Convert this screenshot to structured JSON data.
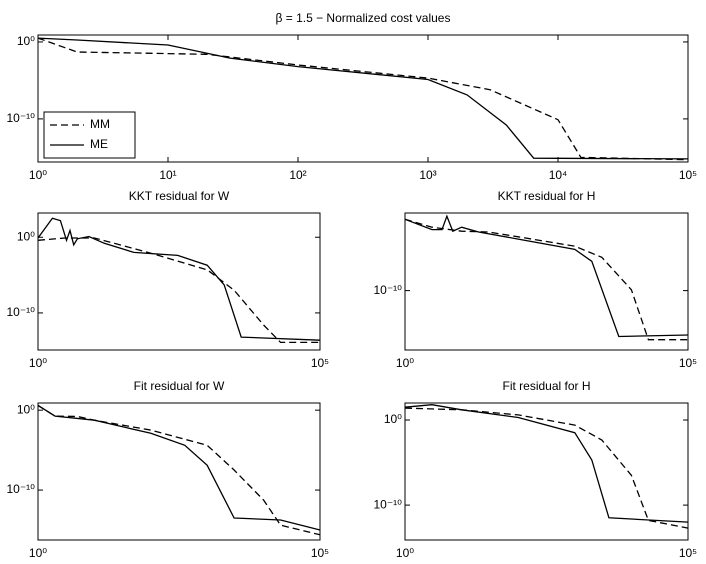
{
  "chart_data": [
    {
      "type": "line",
      "title": "β = 1.5 − Normalized cost values",
      "xscale": "log",
      "yscale": "log",
      "legend": "lower left",
      "xlim": [
        1,
        100000
      ],
      "ylim": [
        2.5e-16,
        8
      ],
      "xticks": [
        {
          "value": 1,
          "label": "10⁰"
        },
        {
          "value": 10,
          "label": "10¹"
        },
        {
          "value": 100,
          "label": "10²"
        },
        {
          "value": 1000,
          "label": "10³"
        },
        {
          "value": 10000,
          "label": "10⁴"
        },
        {
          "value": 100000,
          "label": "10⁵"
        }
      ],
      "yticks": [
        {
          "value": 1,
          "label": "10⁰"
        },
        {
          "value": 1e-10,
          "label": "10⁻¹⁰"
        }
      ],
      "series": [
        {
          "name": "MM",
          "color": "#000000",
          "style": "dashed",
          "x": [
            1,
            2,
            20,
            100,
            1000,
            3000,
            10000,
            15000,
            100000
          ],
          "values": [
            3.2,
            0.05,
            0.025,
            0.001,
            2e-05,
            6.3e-07,
            7.9e-11,
            1e-15,
            5e-16
          ]
        },
        {
          "name": "ME",
          "color": "#000000",
          "style": "solid",
          "x": [
            1,
            2,
            10,
            30,
            100,
            1000,
            2000,
            4000,
            6500,
            100000
          ],
          "values": [
            3.2,
            1.8,
            0.4,
            0.0079,
            0.00063,
            1.3e-05,
            1.3e-07,
            1.6e-11,
            7.9e-16,
            6.3e-16
          ]
        }
      ]
    },
    {
      "type": "line",
      "title": "KKT residual for W",
      "xscale": "log",
      "yscale": "log",
      "xlim": [
        1,
        100000
      ],
      "ylim": [
        1.26e-15,
        1600
      ],
      "xticks": [
        {
          "value": 1,
          "label": "10⁰"
        },
        {
          "value": 100000,
          "label": "10⁵"
        }
      ],
      "yticks": [
        {
          "value": 1,
          "label": "10⁰"
        },
        {
          "value": 1e-10,
          "label": "10⁻¹⁰"
        }
      ],
      "series": [
        {
          "name": "MM",
          "color": "#000000",
          "style": "dashed",
          "x": [
            1,
            3,
            10,
            30,
            100,
            1000,
            3000,
            10000,
            20000,
            100000
          ],
          "values": [
            0.4,
            0.8,
            0.8,
            0.09,
            0.0079,
            5e-05,
            1e-07,
            2.5e-12,
            1.26e-14,
            1.26e-14
          ]
        },
        {
          "name": "ME",
          "color": "#000000",
          "style": "solid",
          "x": [
            1,
            1.8,
            2.5,
            3.2,
            3.7,
            4.3,
            5,
            8,
            15,
            50,
            300,
            1000,
            2000,
            4000,
            100000
          ],
          "values": [
            0.8,
            316,
            158,
            0.4,
            7.9,
            0.1,
            0.63,
            1.26,
            0.16,
            0.01,
            0.004,
            0.0002,
            5e-07,
            6.3e-14,
            2.5e-14
          ]
        }
      ]
    },
    {
      "type": "line",
      "title": "KKT residual for H",
      "xscale": "log",
      "yscale": "log",
      "xlim": [
        1,
        100000
      ],
      "ylim": [
        3.16e-18,
        0.63
      ],
      "xticks": [
        {
          "value": 1,
          "label": "10⁰"
        },
        {
          "value": 100000,
          "label": "10⁵"
        }
      ],
      "yticks": [
        {
          "value": 1e-10,
          "label": "10⁻¹⁰"
        }
      ],
      "series": [
        {
          "name": "MM",
          "color": "#000000",
          "style": "dashed",
          "x": [
            1,
            3,
            10,
            30,
            100,
            1000,
            3000,
            10000,
            20000,
            100000
          ],
          "values": [
            0.1,
            0.01,
            0.0032,
            0.0025,
            0.00063,
            4e-05,
            1.6e-06,
            1.26e-10,
            6.3e-17,
            6.3e-17
          ]
        },
        {
          "name": "ME",
          "color": "#000000",
          "style": "solid",
          "x": [
            1,
            3,
            4.5,
            5.5,
            7,
            10,
            20,
            100,
            1000,
            2000,
            6000,
            100000
          ],
          "values": [
            0.1,
            0.005,
            0.005,
            0.25,
            0.0032,
            0.01,
            0.0025,
            0.00032,
            1.6e-05,
            5e-07,
            1.6e-16,
            2.5e-16
          ]
        }
      ]
    },
    {
      "type": "line",
      "title": "Fit residual for W",
      "xscale": "log",
      "yscale": "log",
      "xlim": [
        1,
        100000
      ],
      "ylim": [
        5.6e-17,
        7.9
      ],
      "xticks": [
        {
          "value": 1,
          "label": "10⁰"
        },
        {
          "value": 100000,
          "label": "10⁵"
        }
      ],
      "yticks": [
        {
          "value": 1,
          "label": "10⁰"
        },
        {
          "value": 1e-10,
          "label": "10⁻¹⁰"
        }
      ],
      "series": [
        {
          "name": "MM",
          "color": "#000000",
          "style": "dashed",
          "x": [
            1,
            2,
            5,
            10,
            100,
            1000,
            3000,
            10000,
            20000,
            100000
          ],
          "values": [
            4,
            0.18,
            0.16,
            0.056,
            0.0032,
            4e-05,
            3.2e-08,
            5.6e-12,
            4e-15,
            2.5e-16
          ]
        },
        {
          "name": "ME",
          "color": "#000000",
          "style": "solid",
          "x": [
            1,
            2,
            10,
            100,
            400,
            1000,
            3000,
            20000,
            100000
          ],
          "values": [
            4,
            0.18,
            0.056,
            0.00126,
            4e-05,
            1.26e-07,
            3.2e-14,
            1.8e-14,
            1e-15
          ]
        }
      ]
    },
    {
      "type": "line",
      "title": "Fit residual for H",
      "xscale": "log",
      "yscale": "log",
      "xlim": [
        1,
        100000
      ],
      "ylim": [
        7.9e-15,
        100
      ],
      "xticks": [
        {
          "value": 1,
          "label": "10⁰"
        },
        {
          "value": 100000,
          "label": "10⁵"
        }
      ],
      "yticks": [
        {
          "value": 1,
          "label": "10⁰"
        },
        {
          "value": 1e-10,
          "label": "10⁻¹⁰"
        }
      ],
      "series": [
        {
          "name": "MM",
          "color": "#000000",
          "style": "dashed",
          "x": [
            1,
            10,
            100,
            1000,
            3000,
            10000,
            20000,
            100000
          ],
          "values": [
            25,
            16,
            4,
            0.25,
            0.0045,
            3.2e-07,
            1.6e-12,
            2e-13
          ]
        },
        {
          "name": "ME",
          "color": "#000000",
          "style": "solid",
          "x": [
            1,
            3,
            10,
            100,
            1000,
            2000,
            4000,
            100000
          ],
          "values": [
            32,
            63,
            16,
            2,
            0.032,
            2e-05,
            3.2e-12,
            1e-12
          ]
        }
      ]
    }
  ]
}
